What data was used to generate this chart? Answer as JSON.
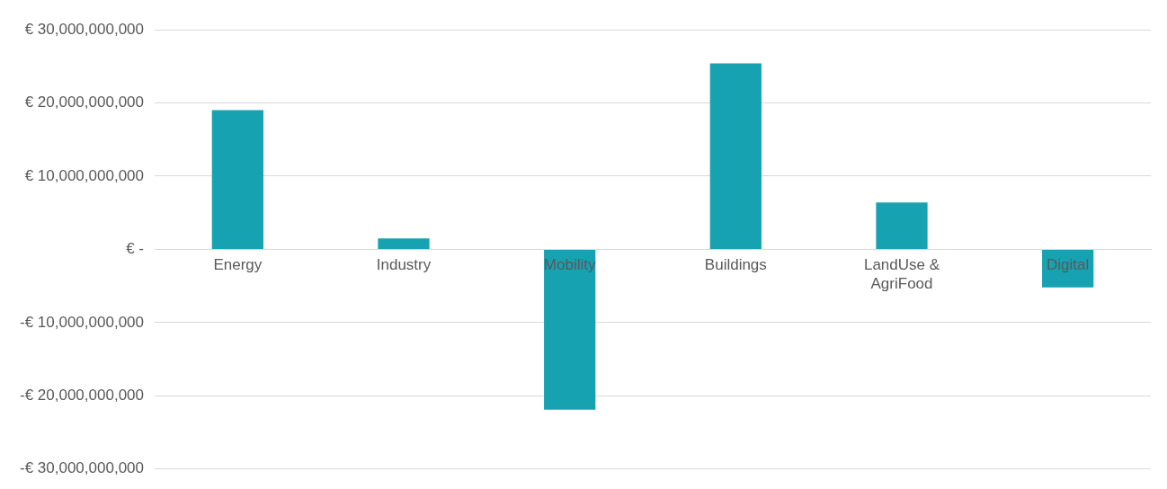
{
  "chart_data": {
    "type": "bar",
    "categories": [
      "Energy",
      "Industry",
      "Mobility",
      "Buildings",
      "LandUse & AgriFood",
      "Digital"
    ],
    "values": [
      19000000000,
      1500000000,
      -21900000000,
      25400000000,
      6400000000,
      -5200000000
    ],
    "color": "#17a2b2",
    "ylim": [
      -30000000000,
      30000000000
    ],
    "yticks": [
      {
        "value": -30000000000,
        "label": "-€ 30,000,000,000"
      },
      {
        "value": -20000000000,
        "label": "-€ 20,000,000,000"
      },
      {
        "value": -10000000000,
        "label": "-€ 10,000,000,000"
      },
      {
        "value": 0,
        "label": "€ -"
      },
      {
        "value": 10000000000,
        "label": "€ 10,000,000,000"
      },
      {
        "value": 20000000000,
        "label": "€ 20,000,000,000"
      },
      {
        "value": 30000000000,
        "label": "€ 30,000,000,000"
      }
    ],
    "grid": "y",
    "legend": false
  }
}
